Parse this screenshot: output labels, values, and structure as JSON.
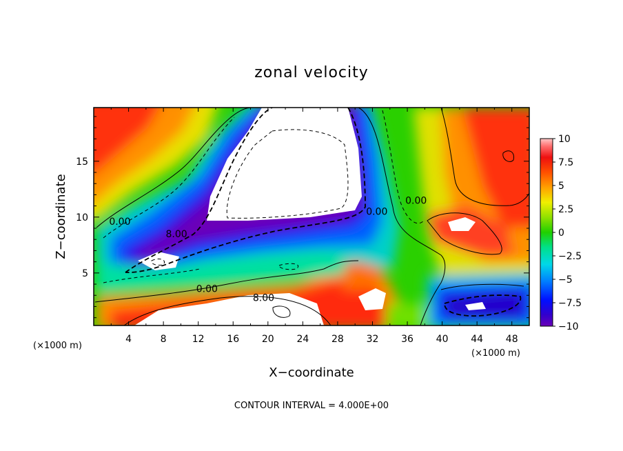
{
  "chart_data": {
    "type": "heatmap",
    "title": "zonal velocity",
    "xlabel": "X−coordinate",
    "ylabel": "Z−coordinate",
    "x_unit_left": "(×1000 m)",
    "x_unit_right": "(×1000 m)",
    "footer": "CONTOUR INTERVAL = 4.000E+00",
    "xlim": [
      0,
      50
    ],
    "ylim": [
      0.3,
      19.8
    ],
    "x_ticks": [
      4,
      8,
      12,
      16,
      20,
      24,
      28,
      32,
      36,
      40,
      44,
      48
    ],
    "x_tick_labels": [
      "4",
      "8",
      "12",
      "16",
      "20",
      "24",
      "28",
      "32",
      "36",
      "40",
      "44",
      "48"
    ],
    "y_ticks": [
      5,
      10,
      15
    ],
    "y_tick_labels": [
      "5",
      "10",
      "15"
    ],
    "colorbar": {
      "range": [
        -10,
        10
      ],
      "ticks": [
        10,
        7.5,
        5,
        2.5,
        0,
        -2.5,
        -5,
        -7.5,
        -10
      ],
      "tick_labels": [
        "10",
        "7.5",
        "5",
        "2.5",
        "0",
        "−2.5",
        "−5",
        "−7.5",
        "−10"
      ]
    },
    "contour_labels": [
      {
        "text": "0.00",
        "x": 3,
        "y": 9.3
      },
      {
        "text": "8.00",
        "x": 9.5,
        "y": 8.2
      },
      {
        "text": "0.00",
        "x": 13,
        "y": 3.3
      },
      {
        "text": "8.00",
        "x": 19.5,
        "y": 2.5
      },
      {
        "text": "0.00",
        "x": 32.5,
        "y": 10.2
      },
      {
        "text": "0.00",
        "x": 37,
        "y": 11.2
      }
    ]
  }
}
